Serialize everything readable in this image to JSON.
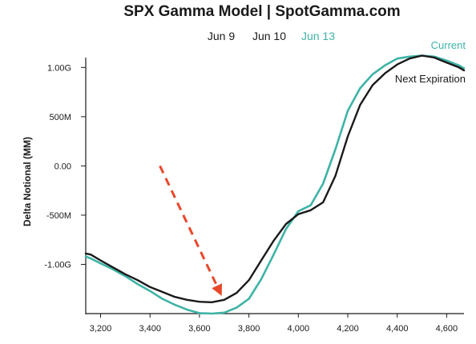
{
  "chart_data": {
    "type": "line",
    "title": "SPX Gamma Model | SpotGamma.com",
    "legend": [
      "Jun 9",
      "Jun 10",
      "Jun 13"
    ],
    "legend_colors": [
      "#1a1a1a",
      "#1a1a1a",
      "#3eb3a6"
    ],
    "xlabel": "",
    "ylabel": "Delta Notional (MM)",
    "xlim": [
      3140,
      4670
    ],
    "ylim": [
      -1500,
      1100
    ],
    "x_ticks": [
      3200,
      3400,
      3600,
      3800,
      4000,
      4200,
      4400,
      4600
    ],
    "x_tick_labels": [
      "3,200",
      "3,400",
      "3,600",
      "3,800",
      "4,000",
      "4,200",
      "4,400",
      "4,600"
    ],
    "y_ticks": [
      1000,
      500,
      0,
      -500,
      -1000
    ],
    "y_tick_labels": [
      "1.00G",
      "500M",
      "0.00",
      "-500M",
      "-1.00G"
    ],
    "series": [
      {
        "name": "Current",
        "color": "#3eb3a6",
        "x": [
          3140,
          3160,
          3200,
          3250,
          3300,
          3350,
          3400,
          3450,
          3500,
          3550,
          3600,
          3650,
          3700,
          3750,
          3800,
          3850,
          3900,
          3950,
          4000,
          4050,
          4100,
          4150,
          4200,
          4250,
          4300,
          4350,
          4400,
          4450,
          4500,
          4550,
          4600,
          4650,
          4670
        ],
        "y": [
          -920,
          -940,
          -990,
          -1050,
          -1120,
          -1200,
          -1270,
          -1350,
          -1410,
          -1460,
          -1495,
          -1500,
          -1490,
          -1440,
          -1350,
          -1150,
          -900,
          -640,
          -460,
          -400,
          -180,
          170,
          560,
          790,
          930,
          1020,
          1090,
          1110,
          1120,
          1110,
          1070,
          1020,
          990
        ]
      },
      {
        "name": "Next Expiration",
        "color": "#1a1a1a",
        "x": [
          3140,
          3160,
          3200,
          3250,
          3300,
          3350,
          3400,
          3450,
          3500,
          3550,
          3600,
          3650,
          3700,
          3750,
          3800,
          3850,
          3900,
          3950,
          4000,
          4050,
          4100,
          4150,
          4200,
          4250,
          4300,
          4350,
          4400,
          4450,
          4500,
          4550,
          4600,
          4650,
          4670
        ],
        "y": [
          -890,
          -900,
          -960,
          -1030,
          -1100,
          -1160,
          -1230,
          -1280,
          -1330,
          -1360,
          -1380,
          -1385,
          -1360,
          -1290,
          -1160,
          -960,
          -760,
          -590,
          -490,
          -450,
          -370,
          -100,
          300,
          620,
          820,
          940,
          1030,
          1090,
          1120,
          1100,
          1050,
          1000,
          970
        ]
      }
    ],
    "annotations": [
      {
        "type": "arrow",
        "style": "dashed",
        "color": "#e8472a",
        "from": [
          3440,
          0
        ],
        "to": [
          3690,
          -1320
        ]
      }
    ]
  }
}
